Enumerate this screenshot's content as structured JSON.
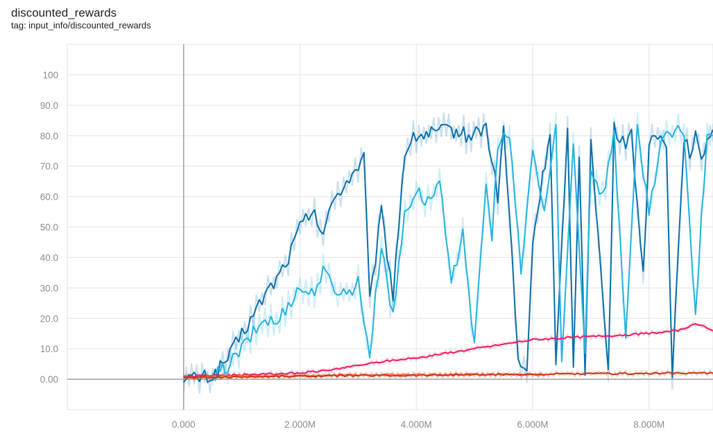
{
  "header": {
    "title": "discounted_rewards",
    "tag": "tag: input_info/discounted_rewards"
  },
  "chart_data": {
    "type": "line",
    "title": "discounted_rewards",
    "xlabel": "",
    "ylabel": "",
    "xlim": [
      -2000000,
      9100000
    ],
    "ylim": [
      -10,
      110
    ],
    "y_ticks": [
      0,
      10,
      20,
      30,
      40,
      50,
      60,
      70,
      80,
      90,
      100
    ],
    "y_tick_labels": [
      "0.00",
      "10.0",
      "20.0",
      "30.0",
      "40.0",
      "50.0",
      "60.0",
      "70.0",
      "80.0",
      "90.0",
      "100"
    ],
    "x_ticks": [
      0,
      2000000,
      4000000,
      6000000,
      8000000
    ],
    "x_tick_labels": [
      "0.000",
      "2.000M",
      "4.000M",
      "6.000M",
      "8.000M"
    ],
    "grid": true,
    "legend": "none",
    "series": [
      {
        "color": "#0b6fa8",
        "x": [
          0,
          500000,
          800000,
          1000000,
          1200000,
          1400000,
          1600000,
          1800000,
          2000000,
          2200000,
          2400000,
          2600000,
          2800000,
          3000000,
          3100000,
          3200000,
          3400000,
          3600000,
          3800000,
          4000000,
          4300000,
          4600000,
          4900000,
          5200000,
          5400000,
          5500000,
          5650000,
          5750000,
          5900000,
          6000000,
          6300000,
          6400000,
          6600000,
          6700000,
          6800000,
          6900000,
          7000000,
          7300000,
          7400000,
          7600000,
          7700000,
          7900000,
          8000000,
          8100000,
          8300000,
          8400000,
          8600000,
          8700000,
          8800000,
          8900000,
          9000000,
          9100000
        ],
        "y": [
          0,
          1,
          8,
          15,
          21,
          28,
          33,
          40,
          50,
          55,
          48,
          60,
          65,
          70,
          73,
          25,
          55,
          28,
          75,
          80,
          81,
          82,
          80,
          83,
          60,
          82,
          40,
          5,
          2,
          45,
          82,
          5,
          80,
          3,
          75,
          2,
          80,
          2,
          82,
          78,
          80,
          35,
          75,
          80,
          78,
          2,
          80,
          75,
          80,
          70,
          80,
          82
        ]
      },
      {
        "color": "#22b3e0",
        "x": [
          500000,
          800000,
          1000000,
          1200000,
          1400000,
          1600000,
          1800000,
          2000000,
          2200000,
          2400000,
          2600000,
          2800000,
          3000000,
          3200000,
          3400000,
          3600000,
          3800000,
          4000000,
          4200000,
          4400000,
          4600000,
          4800000,
          5000000,
          5200000,
          5300000,
          5400000,
          5600000,
          5800000,
          6000000,
          6200000,
          6400000,
          6500000,
          6700000,
          6900000,
          7000000,
          7200000,
          7400000,
          7600000,
          7800000,
          8000000,
          8200000,
          8400000,
          8600000,
          8800000,
          9000000,
          9100000
        ],
        "y": [
          0,
          5,
          10,
          15,
          20,
          18,
          25,
          30,
          28,
          35,
          30,
          28,
          32,
          8,
          45,
          20,
          55,
          62,
          58,
          65,
          30,
          50,
          10,
          65,
          45,
          78,
          80,
          35,
          75,
          55,
          82,
          5,
          78,
          10,
          70,
          60,
          80,
          15,
          82,
          55,
          78,
          80,
          82,
          20,
          82,
          80
        ]
      },
      {
        "color": "#e91e63",
        "x": [
          0,
          1000000,
          2000000,
          2500000,
          3000000,
          3500000,
          4000000,
          4500000,
          5000000,
          5500000,
          6000000,
          6500000,
          7000000,
          7500000,
          8000000,
          8500000,
          8800000,
          9000000,
          9100000
        ],
        "y": [
          1,
          1.5,
          2,
          3,
          4.5,
          6,
          7,
          8.5,
          10,
          11.5,
          13,
          13.5,
          14,
          14.5,
          15,
          16,
          18,
          17,
          16
        ]
      },
      {
        "color": "#ff7043",
        "x": [
          0,
          1000000,
          2000000,
          3000000,
          4000000,
          5000000,
          6000000,
          6200000
        ],
        "y": [
          0.5,
          1,
          1.2,
          1.5,
          1.5,
          1.6,
          1.6,
          1.5
        ]
      },
      {
        "color": "#cc3311",
        "x": [
          0,
          1000000,
          2000000,
          3000000,
          4000000,
          5000000,
          6000000,
          7000000,
          8000000,
          9000000,
          9100000
        ],
        "y": [
          0.5,
          0.8,
          1,
          1.2,
          1.3,
          1.5,
          1.6,
          1.8,
          1.9,
          2,
          2
        ]
      }
    ]
  }
}
